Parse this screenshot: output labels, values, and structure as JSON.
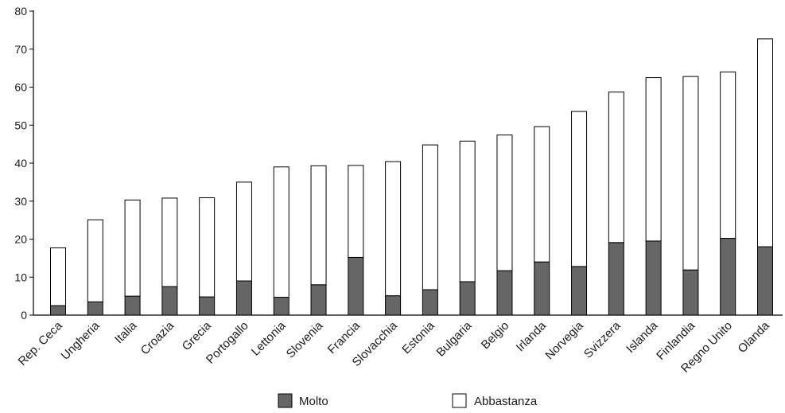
{
  "chart_data": {
    "type": "bar",
    "stacked": true,
    "categories": [
      "Rep. Ceca",
      "Ungheria",
      "Italia",
      "Croazia",
      "Grecia",
      "Portogallo",
      "Lettonia",
      "Slovenia",
      "Francia",
      "Slovacchia",
      "Estonia",
      "Bulgaria",
      "Belgio",
      "Irlanda",
      "Norvegia",
      "Svizzera",
      "Islanda",
      "Finlandia",
      "Regno Unito",
      "Olanda"
    ],
    "series": [
      {
        "name": "Molto",
        "color": "#666666",
        "values": [
          2.5,
          3.5,
          5.0,
          7.5,
          4.8,
          9.0,
          4.7,
          8.0,
          15.2,
          5.1,
          6.7,
          8.8,
          11.7,
          14.0,
          12.8,
          19.1,
          19.5,
          11.9,
          20.2,
          18.0
        ]
      },
      {
        "name": "Abbastanza",
        "color": "#ffffff",
        "values": [
          15.2,
          21.6,
          25.3,
          23.3,
          26.1,
          26.0,
          34.3,
          31.3,
          24.2,
          35.3,
          38.1,
          37.0,
          35.7,
          35.6,
          40.8,
          39.6,
          43.0,
          50.9,
          43.8,
          54.7
        ]
      }
    ],
    "title": "",
    "xlabel": "",
    "ylabel": "",
    "ylim": [
      0,
      80
    ],
    "yticks": [
      "0",
      "10",
      "20",
      "30",
      "40",
      "50",
      "60",
      "70",
      "80"
    ],
    "grid": false,
    "legend_position": "bottom"
  }
}
